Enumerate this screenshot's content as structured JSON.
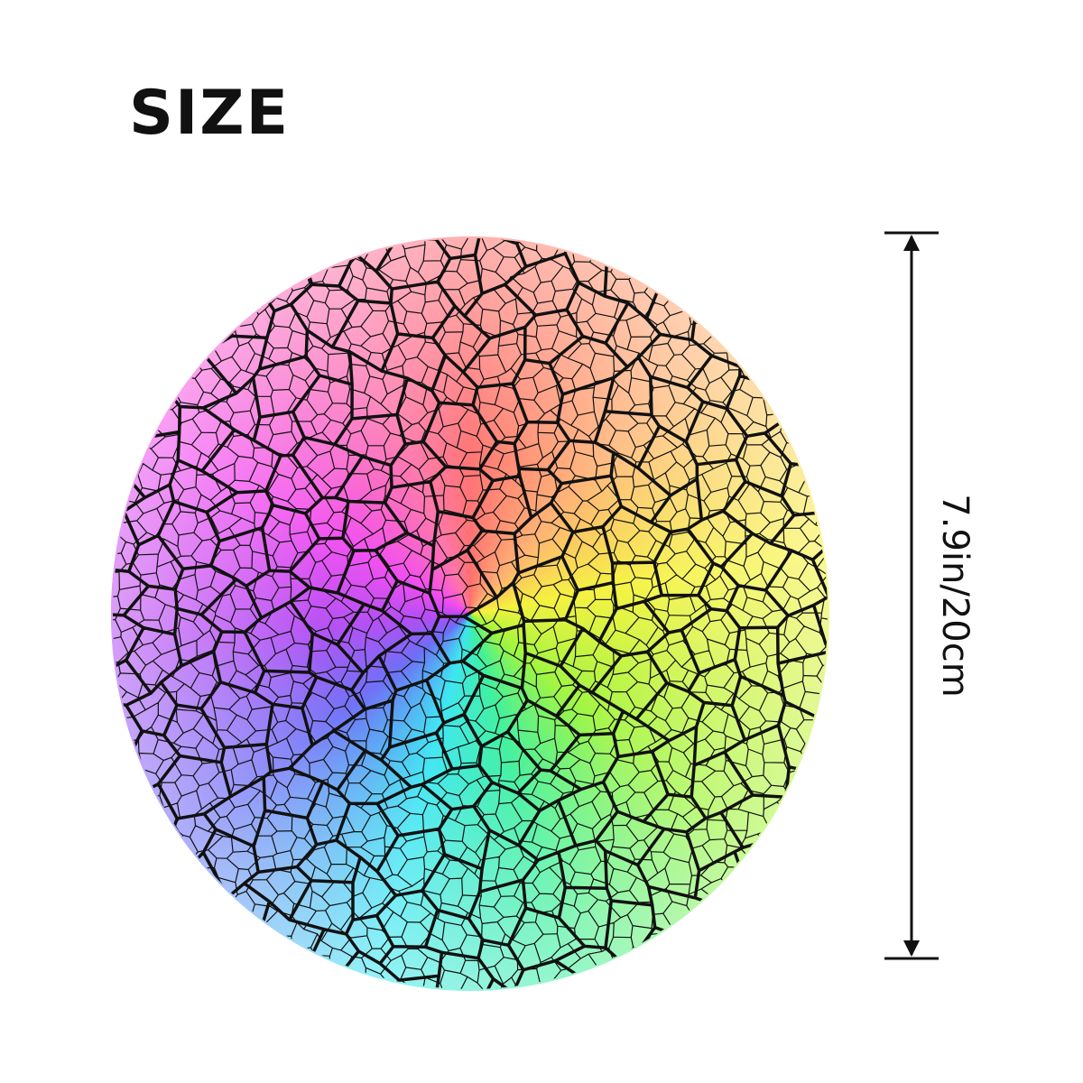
{
  "title": "SIZE",
  "dimension_label": "7.9in/20cm"
}
